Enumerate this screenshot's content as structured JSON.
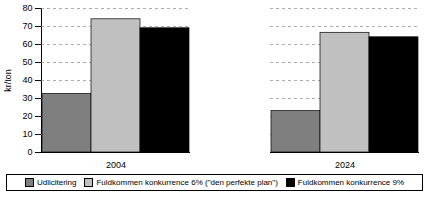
{
  "chart_data": {
    "type": "bar",
    "categories": [
      "2004",
      "2024"
    ],
    "series": [
      {
        "name": "Udlicitering",
        "color": "#7f7f7f",
        "values": [
          32.5,
          23
        ]
      },
      {
        "name": "Fuldkommen konkurrence 6% (\"den perfekte plan\")",
        "color": "#c0c0c0",
        "values": [
          74,
          66.5
        ]
      },
      {
        "name": "Fuldkommen konkurrence 9%",
        "color": "#000000",
        "values": [
          69,
          64
        ]
      }
    ],
    "y_label": "kr/ton",
    "ylim": [
      0,
      80
    ],
    "yticks": [
      0,
      10,
      20,
      30,
      40,
      50,
      60,
      70,
      80
    ],
    "grid": true,
    "legend": "bottom"
  }
}
